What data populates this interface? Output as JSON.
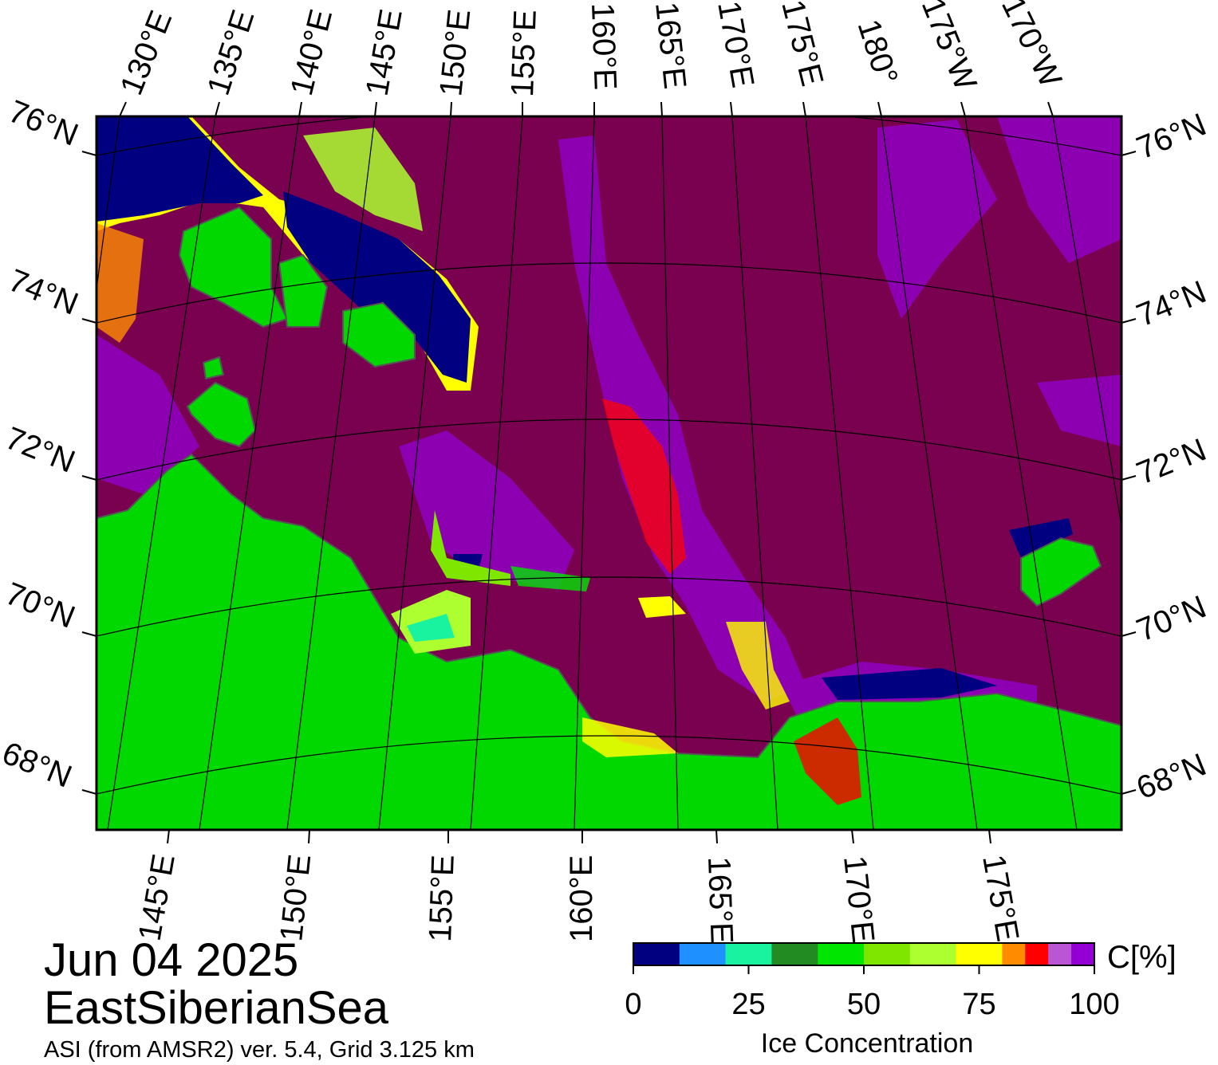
{
  "caption": {
    "date": "Jun 04 2025",
    "region": "EastSiberianSea",
    "source": "ASI (from AMSR2) ver. 5.4,  Grid 3.125 km"
  },
  "map": {
    "top_lon_labels": [
      "130°E",
      "135°E",
      "140°E",
      "145°E",
      "150°E",
      "155°E",
      "160°E",
      "165°E",
      "170°E",
      "175°E",
      "180°",
      "175°W",
      "170°W"
    ],
    "bottom_lon_labels": [
      "145°E",
      "150°E",
      "155°E",
      "160°E",
      "165°E",
      "170°E",
      "175°E"
    ],
    "left_lat_labels": [
      "76°N",
      "74°N",
      "72°N",
      "70°N",
      "68°N"
    ],
    "right_lat_labels": [
      "76°N",
      "74°N",
      "72°N",
      "70°N",
      "68°N"
    ],
    "colors": {
      "open_water": "#7a0050",
      "land": "#00d800",
      "coast_mask": "#808080",
      "dense_ice": "#000080"
    }
  },
  "colorbar": {
    "unit_label": "C[%]",
    "title": "Ice Concentration",
    "ticks": [
      "0",
      "25",
      "50",
      "75",
      "100"
    ],
    "bins": [
      {
        "from": 0,
        "to": 10,
        "color": "#000080"
      },
      {
        "from": 10,
        "to": 20,
        "color": "#1e90ff"
      },
      {
        "from": 20,
        "to": 30,
        "color": "#19f3a0"
      },
      {
        "from": 30,
        "to": 40,
        "color": "#228b22"
      },
      {
        "from": 40,
        "to": 50,
        "color": "#00e600"
      },
      {
        "from": 50,
        "to": 60,
        "color": "#7fe600"
      },
      {
        "from": 60,
        "to": 70,
        "color": "#adff2f"
      },
      {
        "from": 70,
        "to": 80,
        "color": "#ffff00"
      },
      {
        "from": 80,
        "to": 85,
        "color": "#ff8c00"
      },
      {
        "from": 85,
        "to": 90,
        "color": "#ff0000"
      },
      {
        "from": 90,
        "to": 95,
        "color": "#ba55d3"
      },
      {
        "from": 95,
        "to": 100,
        "color": "#9400d3"
      }
    ]
  }
}
